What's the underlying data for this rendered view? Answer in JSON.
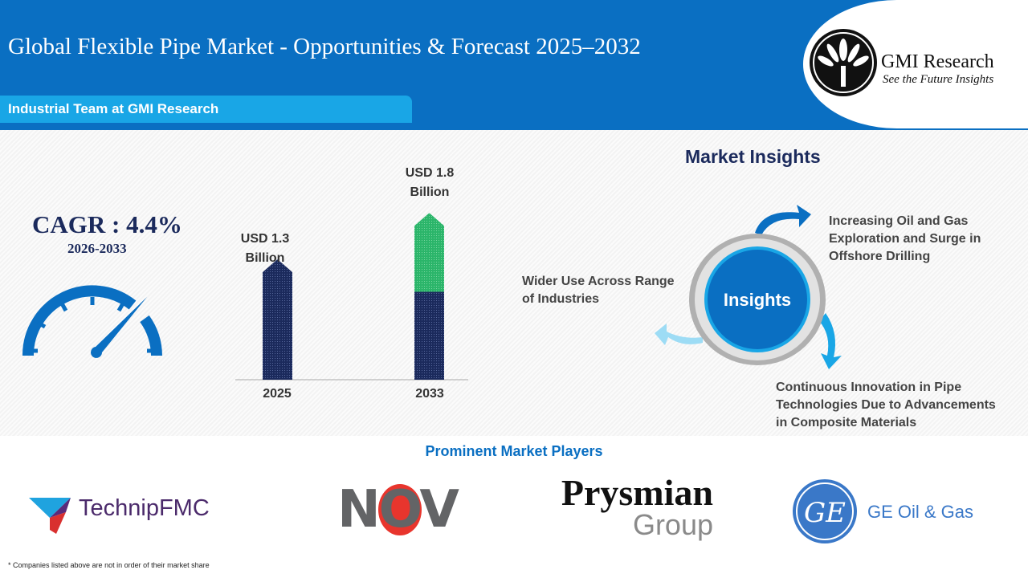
{
  "header": {
    "title": "Global Flexible Pipe Market - Opportunities & Forecast 2025–2032",
    "team": "Industrial Team at GMI Research",
    "brand_name": "GMI Research",
    "brand_tagline": "See the Future Insights"
  },
  "cagr": {
    "label": "CAGR : 4.4%",
    "period": "2026-2033",
    "icon": "speedometer-icon"
  },
  "chart_data": {
    "type": "bar",
    "categories": [
      "2025",
      "2033"
    ],
    "values": [
      1.3,
      1.8
    ],
    "data_labels": [
      "USD 1.3 Billion",
      "USD 1.8 Billion"
    ],
    "unit": "USD Billion",
    "colors": {
      "base": "#1b2a5c",
      "growth": "#2bb56a"
    }
  },
  "insights": {
    "title": "Market Insights",
    "center": "Insights",
    "items": [
      "Increasing Oil and Gas Exploration and Surge in Offshore Drilling",
      "Continuous Innovation in Pipe Technologies Due to Advancements in Composite Materials",
      "Wider Use Across Range of Industries"
    ]
  },
  "players": {
    "title": "Prominent Market Players",
    "logos": [
      "TechnipFMC",
      "NOV",
      "Prysmian Group",
      "GE Oil & Gas"
    ],
    "footnote": "* Companies listed above are not in order of their market share"
  },
  "colors": {
    "primary": "#0a6fc2",
    "accent": "#19a6e6",
    "navy": "#1b2a5c"
  }
}
